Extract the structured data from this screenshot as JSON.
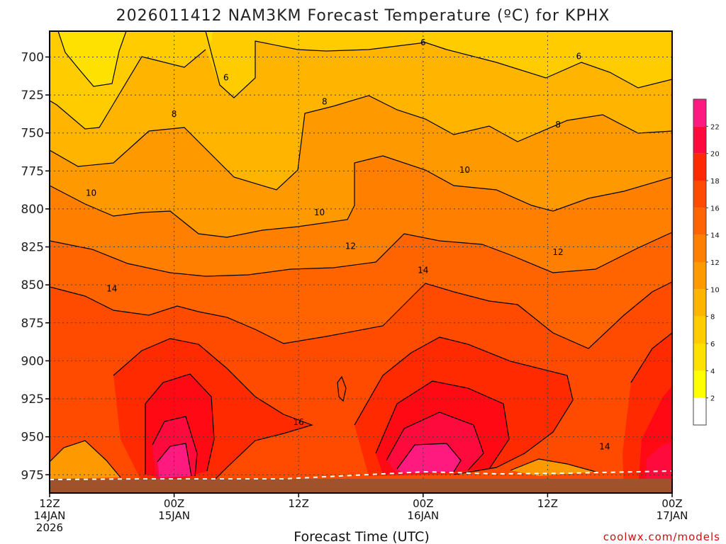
{
  "chart_data": {
    "type": "heatmap",
    "title": "2026011412 NAM3KM Forecast Temperature (ºC) for KPHX",
    "xlabel": "Forecast Time (UTC)",
    "ylabel": "",
    "credit": "coolwx.com/models",
    "y_axis": {
      "ticks": [
        "700",
        "725",
        "750",
        "775",
        "800",
        "825",
        "850",
        "875",
        "900",
        "925",
        "950",
        "975"
      ],
      "values": [
        700,
        725,
        750,
        775,
        800,
        825,
        850,
        875,
        900,
        925,
        950,
        975
      ],
      "range": [
        683,
        987
      ]
    },
    "x_axis": {
      "range_hours": [
        0,
        60
      ],
      "ticks": [
        {
          "hour": 0,
          "line1": "12Z",
          "line2": "14JAN",
          "line3": "2026"
        },
        {
          "hour": 12,
          "line1": "00Z",
          "line2": "15JAN",
          "line3": ""
        },
        {
          "hour": 24,
          "line1": "12Z",
          "line2": "",
          "line3": ""
        },
        {
          "hour": 36,
          "line1": "00Z",
          "line2": "16JAN",
          "line3": ""
        },
        {
          "hour": 48,
          "line1": "12Z",
          "line2": "",
          "line3": ""
        },
        {
          "hour": 60,
          "line1": "00Z",
          "line2": "17JAN",
          "line3": ""
        }
      ]
    },
    "colorbar": {
      "levels": [
        2,
        4,
        6,
        8,
        10,
        12,
        14,
        16,
        18,
        20,
        22
      ],
      "labels": [
        "2",
        "4",
        "6",
        "8",
        "10",
        "12",
        "14",
        "16",
        "18",
        "20",
        "22"
      ],
      "colors": [
        "#ffffff",
        "#ffff00",
        "#ffe100",
        "#ffcc00",
        "#ffb400",
        "#ff9900",
        "#ff8000",
        "#ff6400",
        "#ff4b00",
        "#ff2a00",
        "#ff0a3c",
        "#ff1a80"
      ]
    },
    "contour_labels": [
      {
        "text": "6",
        "hour": 17.0,
        "p": 713
      },
      {
        "text": "6",
        "hour": 36.0,
        "p": 690
      },
      {
        "text": "6",
        "hour": 51.0,
        "p": 699
      },
      {
        "text": "8",
        "hour": 12.0,
        "p": 737
      },
      {
        "text": "8",
        "hour": 26.5,
        "p": 729
      },
      {
        "text": "8",
        "hour": 49.0,
        "p": 744
      },
      {
        "text": "10",
        "hour": 4.0,
        "p": 789
      },
      {
        "text": "10",
        "hour": 26.0,
        "p": 802
      },
      {
        "text": "10",
        "hour": 40.0,
        "p": 774
      },
      {
        "text": "12",
        "hour": 29.0,
        "p": 824
      },
      {
        "text": "12",
        "hour": 49.0,
        "p": 828
      },
      {
        "text": "14",
        "hour": 6.0,
        "p": 852
      },
      {
        "text": "14",
        "hour": 36.0,
        "p": 840
      },
      {
        "text": "14",
        "hour": 53.5,
        "p": 956
      },
      {
        "text": "16",
        "hour": 24.0,
        "p": 940
      }
    ],
    "terrain": {
      "surface_pressure": 978,
      "color": "#a0522d"
    }
  }
}
